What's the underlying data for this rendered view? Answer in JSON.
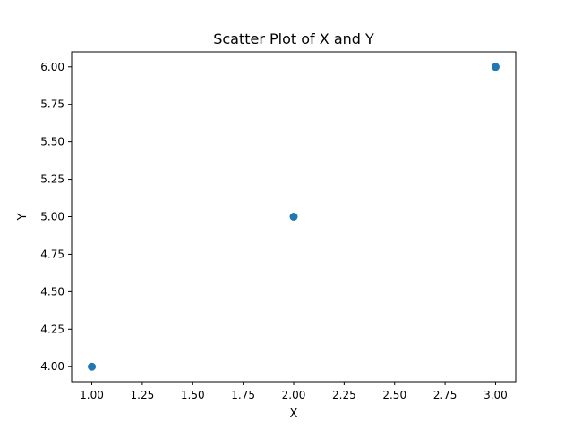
{
  "chart_data": {
    "type": "scatter",
    "title": "Scatter Plot of X and Y",
    "xlabel": "X",
    "ylabel": "Y",
    "xlim": [
      0.9,
      3.1
    ],
    "ylim": [
      3.9,
      6.1
    ],
    "xticks": [
      1.0,
      1.25,
      1.5,
      1.75,
      2.0,
      2.25,
      2.5,
      2.75,
      3.0
    ],
    "xtick_labels": [
      "1.00",
      "1.25",
      "1.50",
      "1.75",
      "2.00",
      "2.25",
      "2.50",
      "2.75",
      "3.00"
    ],
    "yticks": [
      4.0,
      4.25,
      4.5,
      4.75,
      5.0,
      5.25,
      5.5,
      5.75,
      6.0
    ],
    "ytick_labels": [
      "4.00",
      "4.25",
      "4.50",
      "4.75",
      "5.00",
      "5.25",
      "5.50",
      "5.75",
      "6.00"
    ],
    "series": [
      {
        "x": [
          1,
          2,
          3
        ],
        "y": [
          4,
          5,
          6
        ],
        "color": "#1f77b4"
      }
    ],
    "grid": false,
    "legend": "none"
  }
}
